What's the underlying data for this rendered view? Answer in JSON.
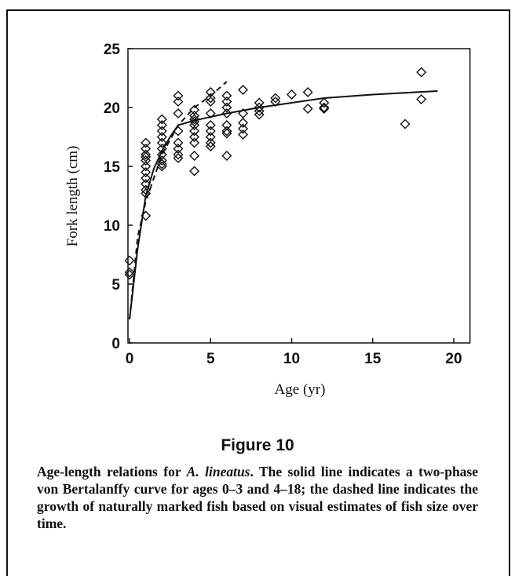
{
  "chart_data": {
    "type": "scatter",
    "xlabel": "Age (yr)",
    "ylabel": "Fork length (cm)",
    "xlim": [
      0,
      21
    ],
    "ylim": [
      0,
      25
    ],
    "xticks": [
      0,
      5,
      10,
      15,
      20
    ],
    "yticks": [
      0,
      5,
      10,
      15,
      20,
      25
    ],
    "marker": "diamond",
    "color": "#111111",
    "x": [
      0,
      0,
      0,
      1,
      1,
      1,
      1,
      1,
      1,
      1,
      1,
      1,
      1,
      1,
      1,
      2,
      2,
      2,
      2,
      2,
      2,
      2,
      2,
      2,
      2,
      3,
      3,
      3,
      3,
      3,
      3,
      3,
      3,
      4,
      4,
      4,
      4,
      4,
      4,
      4,
      4,
      4,
      4,
      5,
      5,
      5,
      5,
      5,
      5,
      5,
      5,
      5,
      6,
      6,
      6,
      6,
      6,
      6,
      6,
      6,
      7,
      7,
      7,
      7,
      7,
      8,
      8,
      8,
      8,
      9,
      9,
      10,
      11,
      11,
      12,
      12,
      12,
      17,
      18,
      18
    ],
    "values": [
      7,
      6,
      5.8,
      17,
      16.5,
      16,
      15.5,
      15,
      14,
      13.5,
      13,
      12.7,
      10.8,
      14.5,
      15.8,
      19,
      18.5,
      18,
      17.5,
      17,
      16.5,
      16,
      15.5,
      15,
      15.2,
      21,
      20.5,
      19.5,
      17,
      16.5,
      16,
      15.7,
      18,
      19.8,
      19.3,
      19,
      18.5,
      18,
      17.5,
      17,
      15.9,
      14.6,
      18.8,
      21.3,
      20.8,
      20.5,
      19.5,
      18.5,
      17.5,
      17,
      16.7,
      18,
      21,
      20.5,
      20,
      19.5,
      18.5,
      18,
      17.8,
      15.9,
      21.5,
      19.5,
      18.7,
      18.2,
      17.7,
      20.4,
      20,
      19.7,
      19.4,
      20.8,
      20.5,
      21.1,
      21.3,
      19.9,
      20.4,
      20,
      19.9,
      18.6,
      23,
      20.7
    ],
    "lines": [
      {
        "style": "solid",
        "x": [
          0,
          0.5,
          1,
          1.5,
          2,
          2.5,
          3,
          4,
          6,
          8,
          10,
          12,
          15,
          19
        ],
        "values": [
          2,
          8,
          12.5,
          14.8,
          16.3,
          17.5,
          18.5,
          18.9,
          19.5,
          20,
          20.4,
          20.8,
          21.1,
          21.4
        ]
      },
      {
        "style": "dashed",
        "x": [
          0,
          0.5,
          1,
          2,
          3,
          4,
          5,
          6
        ],
        "values": [
          2,
          9,
          12,
          16,
          18.5,
          20,
          21,
          22.2
        ]
      }
    ]
  },
  "figure": {
    "label": "Figure 10",
    "caption_before": "Age-length relations for ",
    "caption_italic": "A. lineatus",
    "caption_after": ". The solid line indicates a two-phase von Bertalanffy curve for ages 0–3 and 4–18; the dashed line indicates the growth of naturally marked fish based on visual estimates of fish size over time."
  }
}
